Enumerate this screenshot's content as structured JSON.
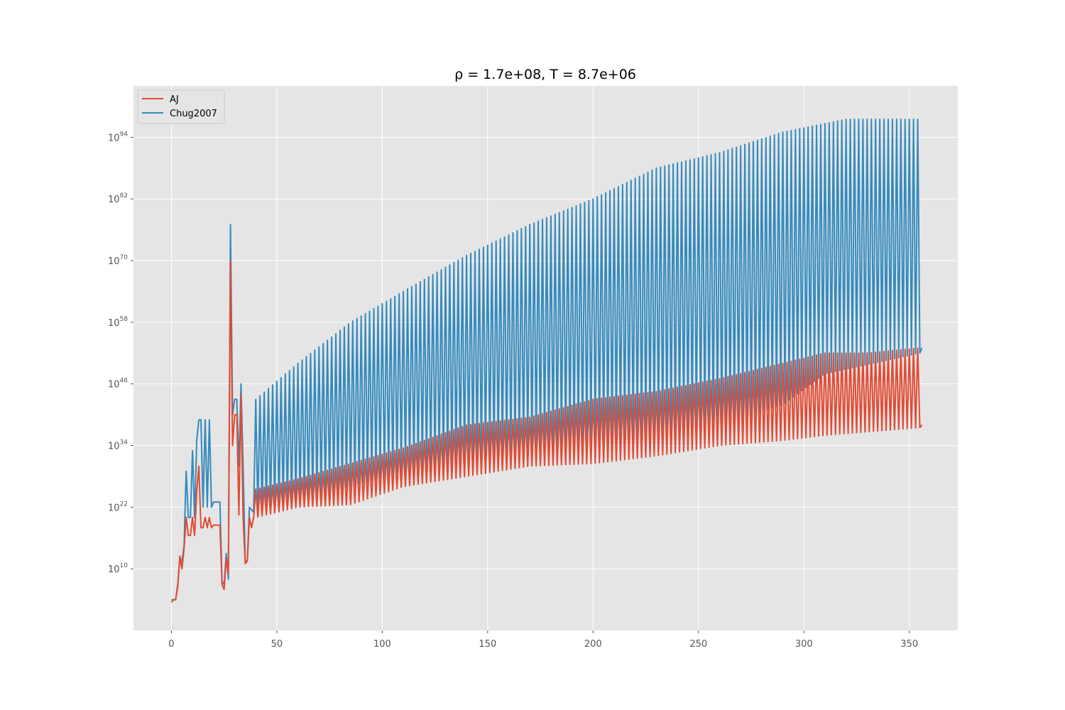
{
  "chart_data": {
    "type": "line",
    "title": "ρ = 1.7e+08, T = 8.7e+06",
    "xlabel": "",
    "ylabel": "",
    "xlim": [
      -18,
      373
    ],
    "ylim_exponent": [
      -2,
      104
    ],
    "y_scale": "log",
    "x_ticks": [
      0,
      50,
      100,
      150,
      200,
      250,
      300,
      350
    ],
    "x_tick_labels": [
      "0",
      "50",
      "100",
      "150",
      "200",
      "250",
      "300",
      "350"
    ],
    "y_ticks_exponent": [
      10,
      22,
      34,
      46,
      58,
      70,
      82,
      94
    ],
    "y_tick_base": "10",
    "y_tick_exponent_labels": [
      "10",
      "22",
      "34",
      "46",
      "58",
      "70",
      "82",
      "94"
    ],
    "grid": true,
    "legend_position": "top-left",
    "style": "ggplot",
    "series": [
      {
        "name": "AJ",
        "color": "#E24A33",
        "early": [
          [
            0,
            3.5
          ],
          [
            1,
            4.0
          ],
          [
            2,
            4.0
          ],
          [
            3,
            6.5
          ],
          [
            4,
            12.5
          ],
          [
            5,
            10.0
          ],
          [
            6,
            14.0
          ],
          [
            7,
            20.0
          ],
          [
            8,
            16.5
          ],
          [
            9,
            16.5
          ],
          [
            10,
            20.0
          ],
          [
            11,
            16.5
          ],
          [
            12,
            25.0
          ],
          [
            13,
            30.0
          ],
          [
            14,
            18.0
          ],
          [
            15,
            18.0
          ],
          [
            16,
            20.0
          ],
          [
            17,
            18.0
          ],
          [
            18,
            20.0
          ],
          [
            19,
            18.0
          ],
          [
            20,
            18.5
          ],
          [
            21,
            18.5
          ],
          [
            22,
            18.5
          ],
          [
            23,
            18.5
          ],
          [
            24,
            7.0
          ],
          [
            25,
            6.0
          ],
          [
            26,
            12.0
          ],
          [
            27,
            9.0
          ],
          [
            28,
            70.0
          ],
          [
            29,
            34.0
          ],
          [
            30,
            40.0
          ],
          [
            31,
            40.0
          ],
          [
            32,
            20.5
          ],
          [
            33,
            44.0
          ],
          [
            34,
            20.0
          ],
          [
            35,
            11.0
          ],
          [
            36,
            11.5
          ],
          [
            37,
            20.0
          ],
          [
            38,
            18.0
          ]
        ],
        "early_end": 38,
        "pattern_start": 39,
        "pattern_end": 355,
        "pattern_high": [
          [
            40,
            25.5
          ],
          [
            60,
            27.5
          ],
          [
            85,
            30.5
          ],
          [
            110,
            33.5
          ],
          [
            140,
            38.0
          ],
          [
            170,
            39.5
          ],
          [
            200,
            43.0
          ],
          [
            230,
            44.5
          ],
          [
            260,
            47.0
          ],
          [
            290,
            50.0
          ],
          [
            300,
            51.0
          ],
          [
            310,
            52.0
          ],
          [
            330,
            52.0
          ],
          [
            355,
            53.0
          ]
        ],
        "pattern_low": [
          [
            40,
            20.0
          ],
          [
            60,
            22.0
          ],
          [
            85,
            22.5
          ],
          [
            110,
            26.0
          ],
          [
            140,
            28.0
          ],
          [
            170,
            30.0
          ],
          [
            200,
            30.5
          ],
          [
            230,
            32.0
          ],
          [
            260,
            34.0
          ],
          [
            290,
            35.0
          ],
          [
            310,
            36.0
          ],
          [
            355,
            37.5
          ]
        ],
        "final": [
          [
            356,
            38.0
          ]
        ]
      },
      {
        "name": "Chug2007",
        "color": "#348ABD",
        "early": [
          [
            0,
            4.0
          ],
          [
            1,
            4.0
          ],
          [
            2,
            4.0
          ],
          [
            3,
            7.0
          ],
          [
            4,
            12.0
          ],
          [
            5,
            11.5
          ],
          [
            6,
            14.5
          ],
          [
            7,
            29.0
          ],
          [
            8,
            20.0
          ],
          [
            9,
            20.0
          ],
          [
            10,
            33.0
          ],
          [
            11,
            20.0
          ],
          [
            12,
            35.0
          ],
          [
            13,
            39.0
          ],
          [
            14,
            39.0
          ],
          [
            15,
            22.0
          ],
          [
            16,
            39.0
          ],
          [
            17,
            22.0
          ],
          [
            18,
            39.0
          ],
          [
            19,
            22.0
          ],
          [
            20,
            23.0
          ],
          [
            21,
            23.0
          ],
          [
            22,
            23.0
          ],
          [
            23,
            23.0
          ],
          [
            24,
            7.5
          ],
          [
            25,
            7.0
          ],
          [
            26,
            13.0
          ],
          [
            27,
            8.0
          ],
          [
            28,
            77.0
          ],
          [
            29,
            40.0
          ],
          [
            30,
            43.0
          ],
          [
            31,
            43.0
          ],
          [
            32,
            30.0
          ],
          [
            33,
            46.0
          ],
          [
            34,
            30.0
          ],
          [
            35,
            11.5
          ],
          [
            36,
            11.5
          ],
          [
            37,
            22.0
          ],
          [
            38,
            21.5
          ]
        ],
        "early_end": 38,
        "pattern_start": 39,
        "pattern_end": 355,
        "pattern_high": [
          [
            40,
            43.0
          ],
          [
            60,
            50.0
          ],
          [
            85,
            58.0
          ],
          [
            110,
            64.0
          ],
          [
            140,
            71.0
          ],
          [
            170,
            77.0
          ],
          [
            200,
            82.0
          ],
          [
            230,
            88.0
          ],
          [
            260,
            91.0
          ],
          [
            290,
            95.0
          ],
          [
            320,
            97.5
          ],
          [
            355,
            97.5
          ]
        ],
        "pattern_low": [
          [
            40,
            21.0
          ],
          [
            60,
            23.0
          ],
          [
            85,
            26.0
          ],
          [
            110,
            29.0
          ],
          [
            140,
            31.0
          ],
          [
            170,
            33.0
          ],
          [
            200,
            35.0
          ],
          [
            230,
            36.0
          ],
          [
            260,
            38.0
          ],
          [
            290,
            42.0
          ],
          [
            310,
            48.0
          ],
          [
            355,
            52.0
          ]
        ],
        "final": [
          [
            356,
            53.0
          ]
        ]
      }
    ]
  }
}
